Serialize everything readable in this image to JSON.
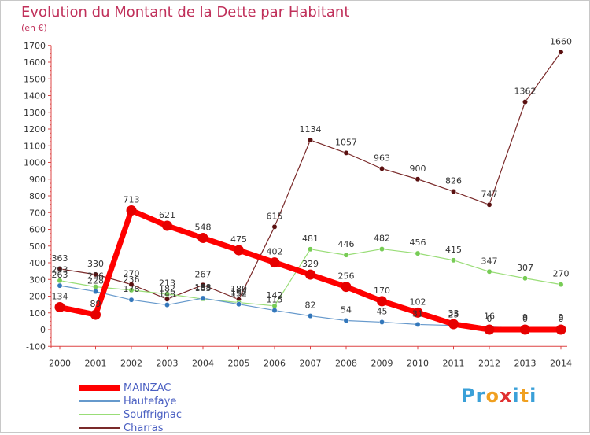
{
  "header": {
    "title": "Evolution du Montant de la Dette par Habitant",
    "subtitle": "(en €)"
  },
  "chart_data": {
    "type": "line",
    "title": "Evolution du Montant de la Dette par Habitant",
    "ylabel": "(en €)",
    "xlabel": "",
    "x": [
      "2000",
      "2001",
      "2002",
      "2003",
      "2004",
      "2005",
      "2006",
      "2007",
      "2008",
      "2009",
      "2010",
      "2011",
      "2012",
      "2013",
      "2014"
    ],
    "ylim": [
      -100,
      1700
    ],
    "yticks": [
      -100,
      0,
      100,
      200,
      300,
      400,
      500,
      600,
      700,
      800,
      900,
      1000,
      1100,
      1200,
      1300,
      1400,
      1500,
      1600,
      1700
    ],
    "series": [
      {
        "name": "Charras",
        "color": "#7a2a2a",
        "marker": "#5a1010",
        "values": [
          363,
          330,
          270,
          182,
          267,
          180,
          615,
          1134,
          1057,
          963,
          900,
          826,
          747,
          1362,
          1660
        ],
        "labels": [
          "363",
          "330",
          "270",
          "182",
          "267",
          "180",
          "615",
          "1134",
          "1057",
          "963",
          "900",
          "826",
          "747",
          "1362",
          "1660"
        ]
      },
      {
        "name": "Souffrignac",
        "color": "#99dd77",
        "marker": "#77cc55",
        "values": [
          293,
          256,
          236,
          213,
          183,
          162,
          142,
          481,
          446,
          482,
          456,
          415,
          347,
          307,
          270
        ],
        "labels": [
          "293",
          "256",
          "236",
          "213",
          "183",
          "162",
          "142",
          "481",
          "446",
          "482",
          "456",
          "415",
          "347",
          "307",
          "270"
        ]
      },
      {
        "name": "Hautefaye",
        "color": "#6699cc",
        "marker": "#3377bb",
        "values": [
          263,
          228,
          178,
          148,
          188,
          152,
          115,
          82,
          54,
          45,
          31,
          25,
          16,
          9,
          9
        ],
        "labels": [
          "263",
          "228",
          "178",
          "148",
          "188",
          "152",
          "115",
          "82",
          "54",
          "45",
          "31",
          "25",
          "16",
          "9",
          "9"
        ]
      },
      {
        "name": "MAINZAC",
        "color": "#ff0000",
        "marker": "#e60000",
        "values": [
          134,
          89,
          713,
          621,
          548,
          475,
          402,
          329,
          256,
          170,
          102,
          33,
          0,
          0,
          0
        ],
        "labels": [
          "134",
          "89",
          "713",
          "621",
          "548",
          "475",
          "402",
          "329",
          "256",
          "170",
          "102",
          "33",
          "0",
          "0",
          "0"
        ]
      }
    ],
    "legend": [
      "MAINZAC",
      "Hautefaye",
      "Souffrignac",
      "Charras"
    ],
    "legend_position": "bottom-left"
  },
  "brand": {
    "logo_letters": [
      "P",
      "r",
      "o",
      "x",
      "i",
      "t",
      "i"
    ],
    "logo_colors": [
      "#3aa0d8",
      "#3aa0d8",
      "#f0a020",
      "#e03030",
      "#3aa0d8",
      "#f0a020",
      "#3aa0d8"
    ]
  }
}
